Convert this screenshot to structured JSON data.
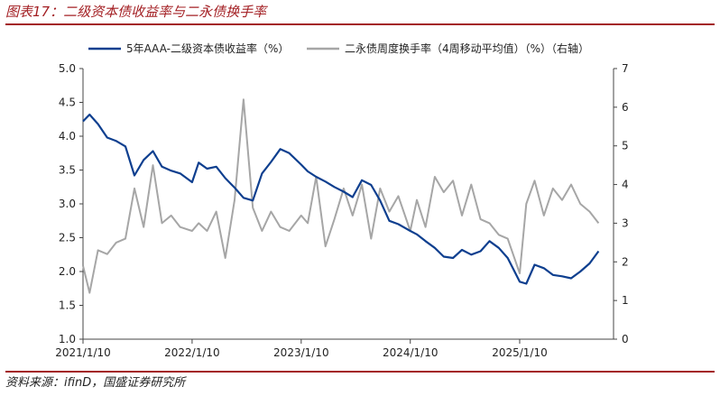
{
  "header": {
    "title": "图表17：二级资本债收益率与二永债换手率"
  },
  "footer": {
    "source": "资料来源：ifinD，国盛证券研究所"
  },
  "colors": {
    "accent": "#a31f23",
    "series_primary": "#0e3f8f",
    "series_secondary": "#a6a6a6"
  },
  "chart_data": {
    "type": "line",
    "title": "",
    "x_ticks": [
      "2021/1/10",
      "2022/1/10",
      "2023/1/10",
      "2024/1/10",
      "2025/1/10"
    ],
    "left_axis": {
      "ylim": [
        1.0,
        5.0
      ],
      "ticks": [
        "1.0",
        "1.5",
        "2.0",
        "2.5",
        "3.0",
        "3.5",
        "4.0",
        "4.5",
        "5.0"
      ]
    },
    "right_axis": {
      "ylim": [
        0,
        7
      ],
      "ticks": [
        "0",
        "1",
        "2",
        "3",
        "4",
        "5",
        "6",
        "7"
      ]
    },
    "legend": {
      "placement": "top"
    },
    "series": [
      {
        "name": "5年AAA-二级资本债收益率（%）",
        "axis": "left",
        "x": [
          "2021-01-10",
          "2021-02-01",
          "2021-03-01",
          "2021-04-01",
          "2021-05-01",
          "2021-06-01",
          "2021-07-01",
          "2021-08-01",
          "2021-09-01",
          "2021-10-01",
          "2021-11-01",
          "2021-12-01",
          "2022-01-10",
          "2022-02-01",
          "2022-03-01",
          "2022-04-01",
          "2022-05-01",
          "2022-06-01",
          "2022-07-01",
          "2022-08-01",
          "2022-09-01",
          "2022-10-01",
          "2022-11-01",
          "2022-12-01",
          "2023-01-10",
          "2023-02-01",
          "2023-03-01",
          "2023-04-01",
          "2023-05-01",
          "2023-06-01",
          "2023-07-01",
          "2023-08-01",
          "2023-09-01",
          "2023-10-01",
          "2023-11-01",
          "2023-12-01",
          "2024-01-10",
          "2024-02-01",
          "2024-03-01",
          "2024-04-01",
          "2024-05-01",
          "2024-06-01",
          "2024-07-01",
          "2024-08-01",
          "2024-09-01",
          "2024-10-01",
          "2024-11-01",
          "2024-12-01",
          "2025-01-10",
          "2025-02-01",
          "2025-03-01",
          "2025-04-01",
          "2025-05-01",
          "2025-06-01",
          "2025-07-01",
          "2025-08-01",
          "2025-09-01",
          "2025-10-01"
        ],
        "values": [
          4.22,
          4.32,
          4.18,
          3.98,
          3.93,
          3.85,
          3.42,
          3.65,
          3.78,
          3.55,
          3.49,
          3.45,
          3.32,
          3.61,
          3.52,
          3.55,
          3.38,
          3.24,
          3.09,
          3.05,
          3.45,
          3.62,
          3.81,
          3.75,
          3.58,
          3.48,
          3.4,
          3.33,
          3.25,
          3.18,
          3.1,
          3.35,
          3.28,
          3.05,
          2.75,
          2.7,
          2.6,
          2.55,
          2.45,
          2.35,
          2.22,
          2.2,
          2.32,
          2.25,
          2.3,
          2.45,
          2.35,
          2.2,
          1.85,
          1.82,
          2.1,
          2.05,
          1.95,
          1.93,
          1.9,
          2.0,
          2.12,
          2.3
        ]
      },
      {
        "name": "二永债周度换手率（4周移动平均值）（%）（右轴）",
        "axis": "right",
        "x": [
          "2021-01-10",
          "2021-02-01",
          "2021-03-01",
          "2021-04-01",
          "2021-05-01",
          "2021-06-01",
          "2021-07-01",
          "2021-08-01",
          "2021-09-01",
          "2021-10-01",
          "2021-11-01",
          "2021-12-01",
          "2022-01-10",
          "2022-02-01",
          "2022-03-01",
          "2022-04-01",
          "2022-05-01",
          "2022-06-01",
          "2022-07-01",
          "2022-08-01",
          "2022-09-01",
          "2022-10-01",
          "2022-11-01",
          "2022-12-01",
          "2023-01-10",
          "2023-02-01",
          "2023-03-01",
          "2023-04-01",
          "2023-05-01",
          "2023-06-01",
          "2023-07-01",
          "2023-08-01",
          "2023-09-01",
          "2023-10-01",
          "2023-11-01",
          "2023-12-01",
          "2024-01-10",
          "2024-02-01",
          "2024-03-01",
          "2024-04-01",
          "2024-05-01",
          "2024-06-01",
          "2024-07-01",
          "2024-08-01",
          "2024-09-01",
          "2024-10-01",
          "2024-11-01",
          "2024-12-01",
          "2025-01-10",
          "2025-02-01",
          "2025-03-01",
          "2025-04-01",
          "2025-05-01",
          "2025-06-01",
          "2025-07-01",
          "2025-08-01",
          "2025-09-01",
          "2025-10-01"
        ],
        "values": [
          1.9,
          1.2,
          2.3,
          2.2,
          2.5,
          2.6,
          3.9,
          2.9,
          4.5,
          3.0,
          3.2,
          2.9,
          2.8,
          3.0,
          2.8,
          3.3,
          2.1,
          3.6,
          6.2,
          3.4,
          2.8,
          3.3,
          2.9,
          2.8,
          3.2,
          3.0,
          4.2,
          2.4,
          3.1,
          3.9,
          3.2,
          4.0,
          2.6,
          3.9,
          3.3,
          3.7,
          2.8,
          3.6,
          2.9,
          4.2,
          3.8,
          4.1,
          3.2,
          4.0,
          3.1,
          3.0,
          2.7,
          2.6,
          1.7,
          3.5,
          4.1,
          3.2,
          3.9,
          3.6,
          4.0,
          3.5,
          3.3,
          3.0
        ]
      }
    ]
  }
}
